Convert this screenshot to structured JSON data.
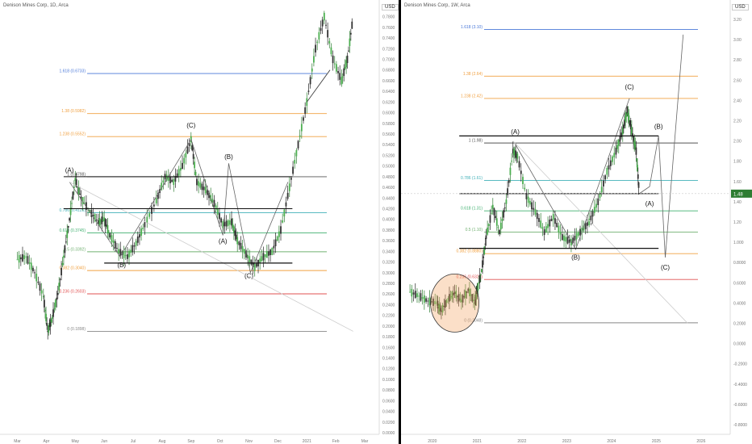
{
  "chart_data": [
    {
      "type": "candlestick",
      "title": "Denison Mines Corp, 1D, Arca",
      "interval": "1D",
      "yaxis": {
        "ticks": [
          "0.7800",
          "0.7600",
          "0.7400",
          "0.7200",
          "0.7000",
          "0.6800",
          "0.6600",
          "0.6400",
          "0.6200",
          "0.6000",
          "0.5800",
          "0.5600",
          "0.5400",
          "0.5200",
          "0.5000",
          "0.4800",
          "0.4600",
          "0.4400",
          "0.4200",
          "0.4000",
          "0.3800",
          "0.3600",
          "0.3400",
          "0.3200",
          "0.3000",
          "0.2800",
          "0.2600",
          "0.2400",
          "0.2200",
          "0.2000",
          "0.1800",
          "0.1600",
          "0.1400",
          "0.1200",
          "0.1000",
          "0.0800",
          "0.0600",
          "0.0400",
          "0.0200",
          "0.0000"
        ],
        "ylim": [
          0,
          0.79
        ]
      },
      "xaxis": {
        "ticks": [
          {
            "label": "Mar",
            "x": 0
          },
          {
            "label": "Apr",
            "x": 1
          },
          {
            "label": "May",
            "x": 2
          },
          {
            "label": "Jun",
            "x": 3
          },
          {
            "label": "Jul",
            "x": 4
          },
          {
            "label": "Aug",
            "x": 5
          },
          {
            "label": "Sep",
            "x": 6
          },
          {
            "label": "Oct",
            "x": 7
          },
          {
            "label": "Nov",
            "x": 8
          },
          {
            "label": "Dec",
            "x": 9
          },
          {
            "label": "2021",
            "x": 10
          },
          {
            "label": "Feb",
            "x": 11
          },
          {
            "label": "Mar",
            "x": 12
          }
        ],
        "xlim": [
          -0.6,
          12.5
        ]
      },
      "fib_levels": [
        {
          "label": "1.618 (0.6733)",
          "value": 0.6733,
          "color": "#4a78d8"
        },
        {
          "label": "1.38 (0.5982)",
          "value": 0.5982,
          "color": "#f0a040"
        },
        {
          "label": "1.238 (0.5552)",
          "value": 0.5552,
          "color": "#f0a040"
        },
        {
          "label": "1 (0.4798)",
          "value": 0.4798,
          "color": "#555555"
        },
        {
          "label": "0.786 (0.4125)",
          "value": 0.4125,
          "color": "#40b0b8"
        },
        {
          "label": "0.618 (0.3745)",
          "value": 0.3745,
          "color": "#40b070"
        },
        {
          "label": "0.5 (0.3392)",
          "value": 0.3392,
          "color": "#70b070"
        },
        {
          "label": "0.382 (0.3040)",
          "value": 0.304,
          "color": "#f0a040"
        },
        {
          "label": "0.236 (0.2603)",
          "value": 0.2603,
          "color": "#e05050"
        },
        {
          "label": "0 (0.1898)",
          "value": 0.1898,
          "color": "#888888"
        }
      ],
      "wave_labels": [
        {
          "text": "(A)",
          "x": 1.8,
          "y": 0.488
        },
        {
          "text": "(B)",
          "x": 3.6,
          "y": 0.31
        },
        {
          "text": "(C)",
          "x": 6.0,
          "y": 0.572
        },
        {
          "text": "(B)",
          "x": 7.3,
          "y": 0.513
        },
        {
          "text": "(A)",
          "x": 7.1,
          "y": 0.355
        },
        {
          "text": "(C)",
          "x": 8.0,
          "y": 0.29
        }
      ],
      "price_path": [
        [
          0,
          0.325
        ],
        [
          0.3,
          0.33
        ],
        [
          0.6,
          0.3
        ],
        [
          0.9,
          0.255
        ],
        [
          1.05,
          0.19
        ],
        [
          1.2,
          0.215
        ],
        [
          1.4,
          0.26
        ],
        [
          1.6,
          0.33
        ],
        [
          1.8,
          0.4
        ],
        [
          2.0,
          0.475
        ],
        [
          2.2,
          0.44
        ],
        [
          2.5,
          0.415
        ],
        [
          2.8,
          0.395
        ],
        [
          3.0,
          0.4
        ],
        [
          3.2,
          0.37
        ],
        [
          3.5,
          0.34
        ],
        [
          3.8,
          0.33
        ],
        [
          4.1,
          0.355
        ],
        [
          4.4,
          0.39
        ],
        [
          4.8,
          0.435
        ],
        [
          5.1,
          0.48
        ],
        [
          5.4,
          0.47
        ],
        [
          5.7,
          0.5
        ],
        [
          6.0,
          0.55
        ],
        [
          6.2,
          0.47
        ],
        [
          6.5,
          0.455
        ],
        [
          6.8,
          0.43
        ],
        [
          7.1,
          0.39
        ],
        [
          7.4,
          0.395
        ],
        [
          7.6,
          0.36
        ],
        [
          7.9,
          0.335
        ],
        [
          8.2,
          0.31
        ],
        [
          8.5,
          0.33
        ],
        [
          8.8,
          0.34
        ],
        [
          9.1,
          0.38
        ],
        [
          9.4,
          0.46
        ],
        [
          9.7,
          0.54
        ],
        [
          10.0,
          0.62
        ],
        [
          10.3,
          0.72
        ],
        [
          10.6,
          0.78
        ],
        [
          10.9,
          0.7
        ],
        [
          11.2,
          0.66
        ],
        [
          11.4,
          0.7
        ],
        [
          11.6,
          0.78
        ]
      ]
    },
    {
      "type": "candlestick",
      "title": "Denison Mines Corp, 1W, Arca",
      "interval": "1W",
      "yaxis": {
        "ticks": [
          "3.20",
          "3.00",
          "2.80",
          "2.60",
          "2.40",
          "2.20",
          "2.00",
          "1.80",
          "1.60",
          "1.40",
          "1.20",
          "1.000",
          "0.8000",
          "0.6000",
          "0.4000",
          "0.2000",
          "0.0000",
          "-0.2000",
          "-0.4000",
          "-0.6000",
          "-0.8000"
        ],
        "ylim": [
          -0.88,
          3.28
        ]
      },
      "xaxis": {
        "ticks": [
          {
            "label": "2020",
            "x": 2020
          },
          {
            "label": "2021",
            "x": 2021
          },
          {
            "label": "2022",
            "x": 2022
          },
          {
            "label": "2023",
            "x": 2023
          },
          {
            "label": "2024",
            "x": 2024
          },
          {
            "label": "2025",
            "x": 2025
          },
          {
            "label": "2026",
            "x": 2026
          }
        ],
        "xlim": [
          2019.3,
          2026.65
        ]
      },
      "last_price": "1.48",
      "fib_levels": [
        {
          "label": "1.618 (3.10)",
          "value": 3.1,
          "color": "#4a78d8"
        },
        {
          "label": "1.38 (2.64)",
          "value": 2.64,
          "color": "#f0a040"
        },
        {
          "label": "1.238 (2.42)",
          "value": 2.42,
          "color": "#f0a040"
        },
        {
          "label": "1 (1.98)",
          "value": 1.98,
          "color": "#555555"
        },
        {
          "label": "0.786 (1.61)",
          "value": 1.61,
          "color": "#40b0b8"
        },
        {
          "label": "0.618 (1.31)",
          "value": 1.31,
          "color": "#40b070"
        },
        {
          "label": "0.5 (1.10)",
          "value": 1.1,
          "color": "#70b070"
        },
        {
          "label": "0.382 (0.8880)",
          "value": 0.888,
          "color": "#f0a040"
        },
        {
          "label": "0.236 (0.6329)",
          "value": 0.6329,
          "color": "#e05050"
        },
        {
          "label": "0 (0.2048)",
          "value": 0.2048,
          "color": "#888888"
        }
      ],
      "wave_labels": [
        {
          "text": "(A)",
          "x": 2021.85,
          "y": 2.07
        },
        {
          "text": "(B)",
          "x": 2023.2,
          "y": 0.83
        },
        {
          "text": "(C)",
          "x": 2024.4,
          "y": 2.51
        },
        {
          "text": "(B)",
          "x": 2025.05,
          "y": 2.12
        },
        {
          "text": "(A)",
          "x": 2024.85,
          "y": 1.36
        },
        {
          "text": "(C)",
          "x": 2025.2,
          "y": 0.73
        }
      ],
      "price_path": [
        [
          2019.5,
          0.51
        ],
        [
          2019.7,
          0.47
        ],
        [
          2019.9,
          0.42
        ],
        [
          2020.1,
          0.4
        ],
        [
          2020.2,
          0.32
        ],
        [
          2020.35,
          0.44
        ],
        [
          2020.5,
          0.5
        ],
        [
          2020.65,
          0.42
        ],
        [
          2020.8,
          0.53
        ],
        [
          2020.95,
          0.4
        ],
        [
          2021.0,
          0.52
        ],
        [
          2021.1,
          0.72
        ],
        [
          2021.2,
          1.05
        ],
        [
          2021.35,
          1.35
        ],
        [
          2021.5,
          1.1
        ],
        [
          2021.65,
          1.4
        ],
        [
          2021.8,
          1.9
        ],
        [
          2021.9,
          1.85
        ],
        [
          2022.1,
          1.45
        ],
        [
          2022.3,
          1.3
        ],
        [
          2022.5,
          1.1
        ],
        [
          2022.7,
          1.25
        ],
        [
          2022.9,
          1.05
        ],
        [
          2023.1,
          1.0
        ],
        [
          2023.3,
          1.1
        ],
        [
          2023.5,
          1.2
        ],
        [
          2023.7,
          1.4
        ],
        [
          2023.9,
          1.7
        ],
        [
          2024.1,
          1.9
        ],
        [
          2024.25,
          2.1
        ],
        [
          2024.35,
          2.3
        ],
        [
          2024.45,
          2.1
        ],
        [
          2024.55,
          1.9
        ],
        [
          2024.62,
          1.48
        ]
      ]
    }
  ]
}
